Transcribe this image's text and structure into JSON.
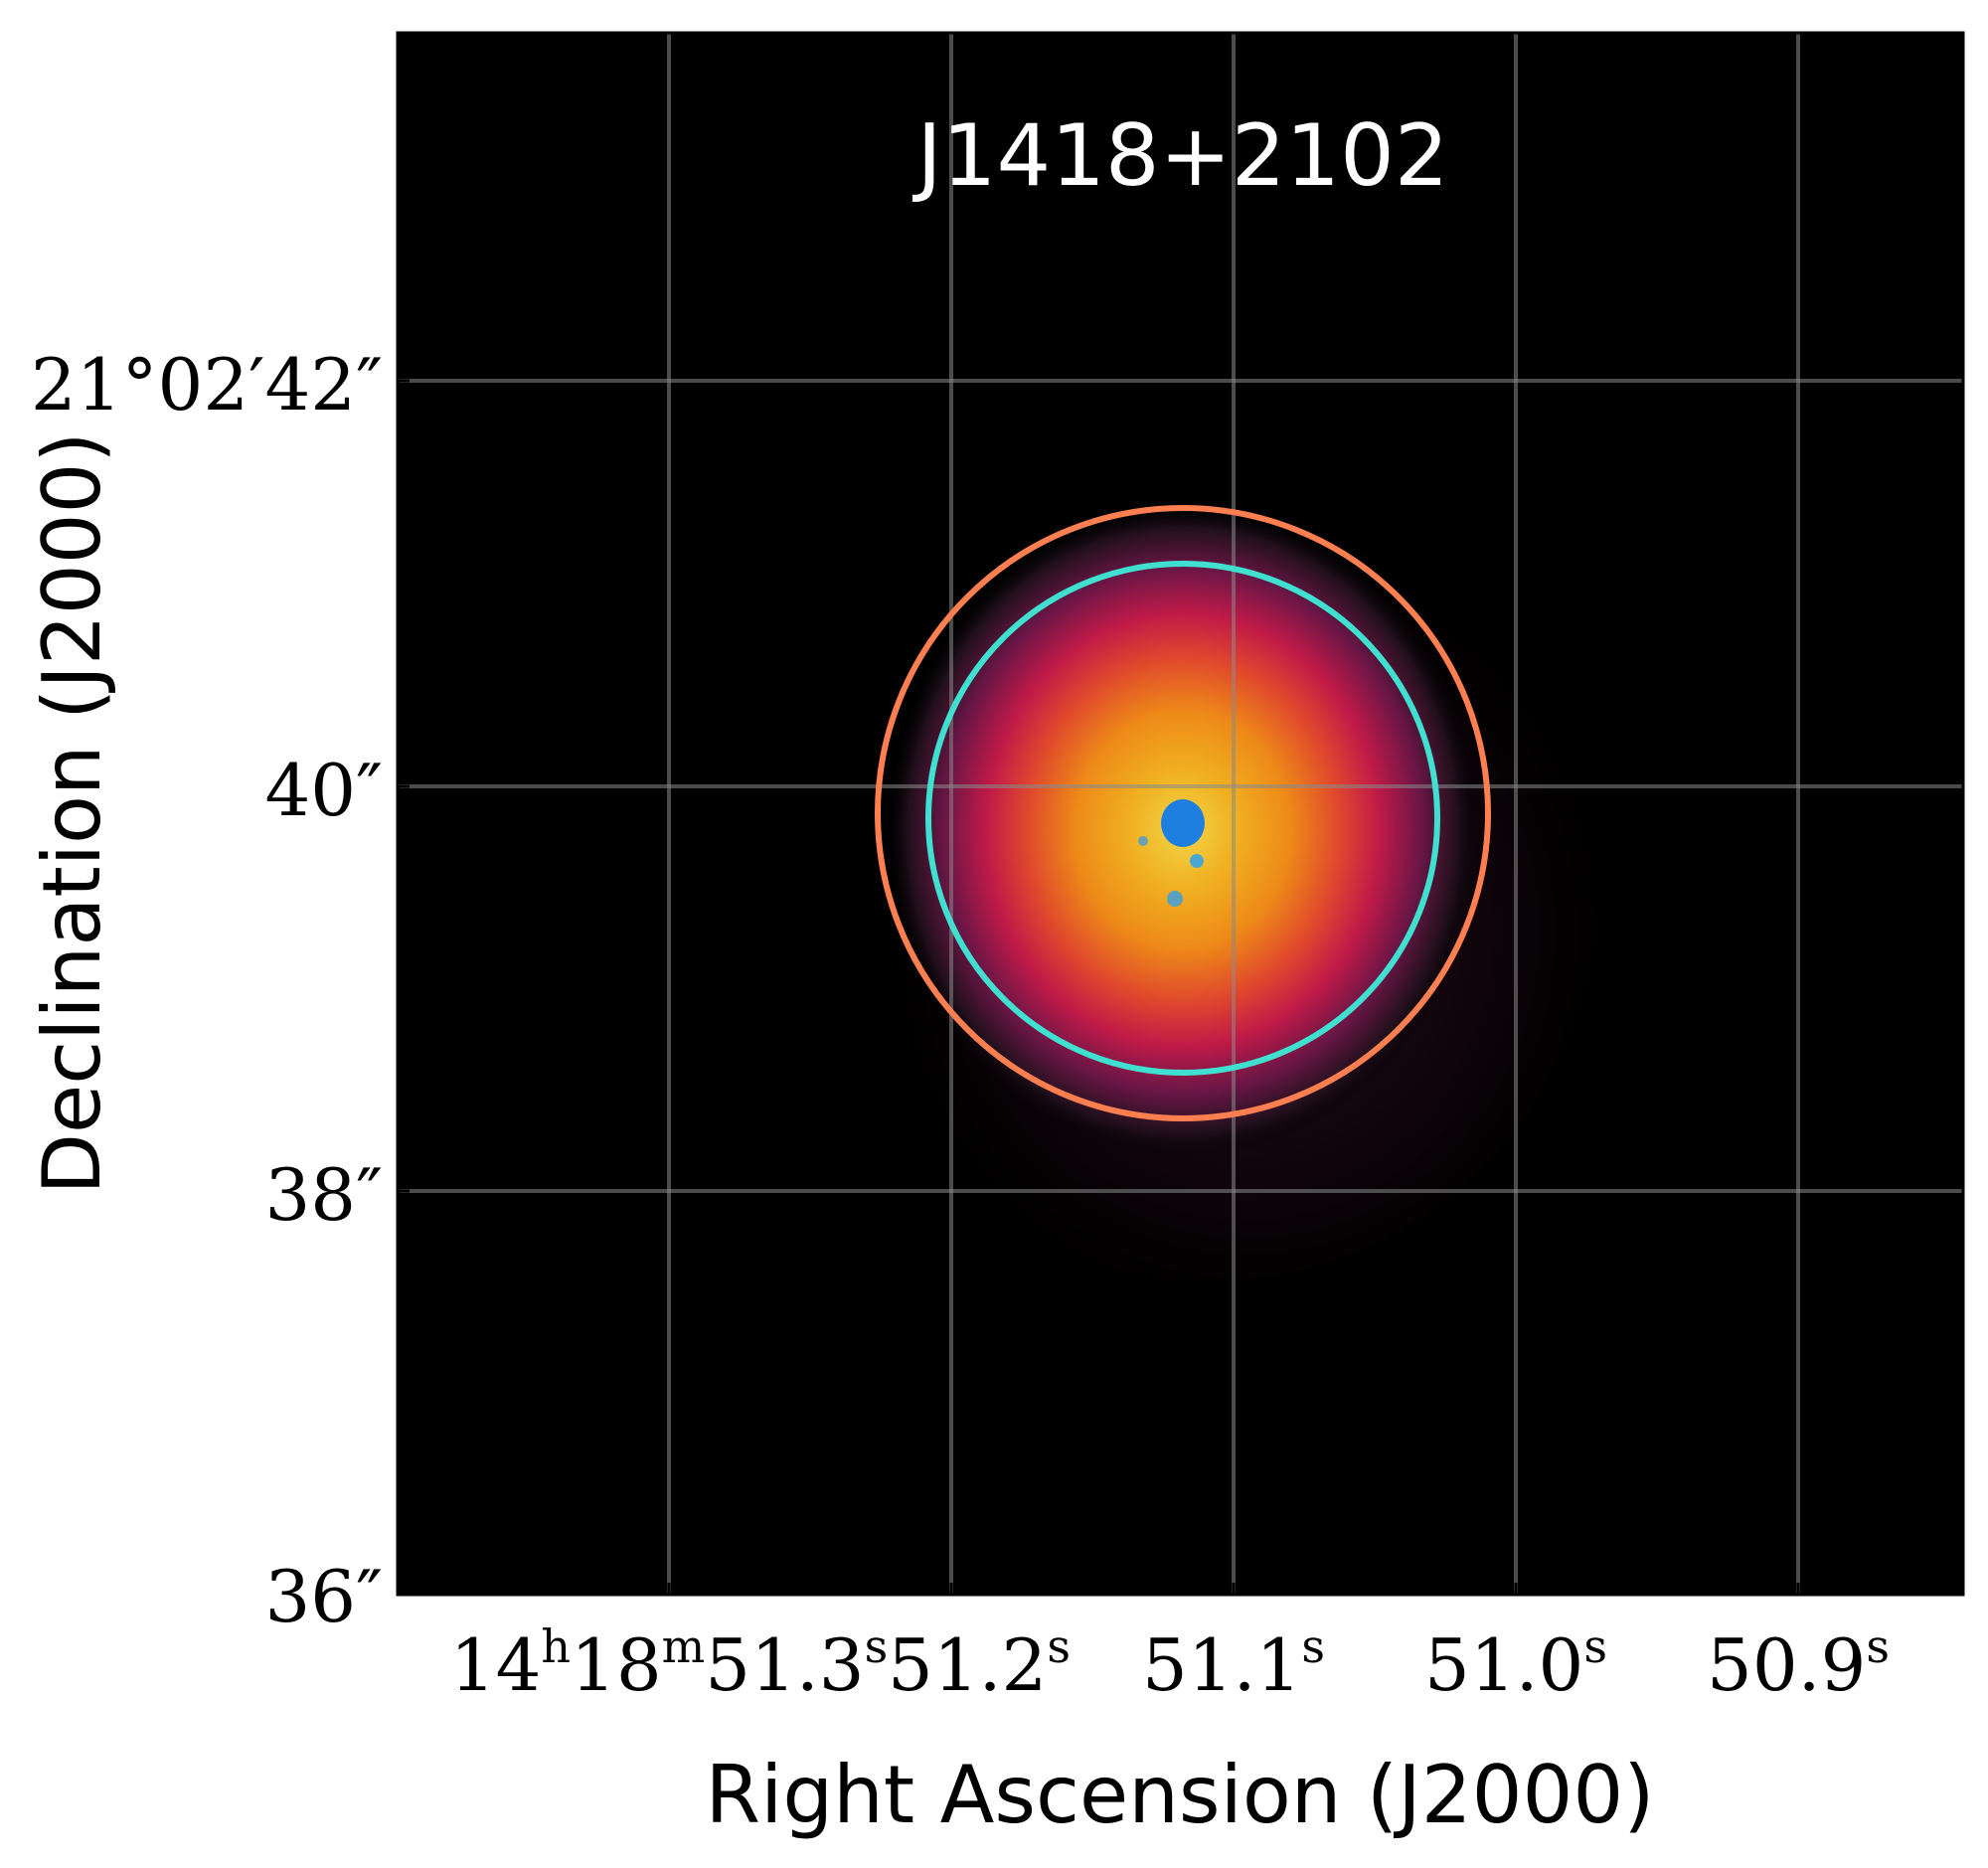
{
  "title": "J1418+2102",
  "xlabel": "Right Ascension (J2000)",
  "ylabel": "Declination (J2000)",
  "x_ticks": [
    {
      "label": "14",
      "sup1": "h",
      "part2": "18",
      "sup2": "m",
      "part3": "51.3",
      "sup3": "s"
    },
    {
      "label": "51.2",
      "sup": "s"
    },
    {
      "label": "51.1",
      "sup": "s"
    },
    {
      "label": "51.0",
      "sup": "s"
    },
    {
      "label": "50.9",
      "sup": "s"
    }
  ],
  "y_ticks": [
    {
      "label": "21°02′42″"
    },
    {
      "label": "40″"
    },
    {
      "label": "38″"
    },
    {
      "label": "36″"
    }
  ],
  "colors": {
    "background": "#000000",
    "outer_circle": "#ff7f50",
    "inner_circle": "#40e0d0",
    "core": "#1e7fe0",
    "grid": "#6e6e6e",
    "title": "#ffffff"
  },
  "overlays": [
    {
      "name": "outer-aperture",
      "color": "#ff7f50"
    },
    {
      "name": "inner-aperture",
      "color": "#40e0d0"
    }
  ]
}
